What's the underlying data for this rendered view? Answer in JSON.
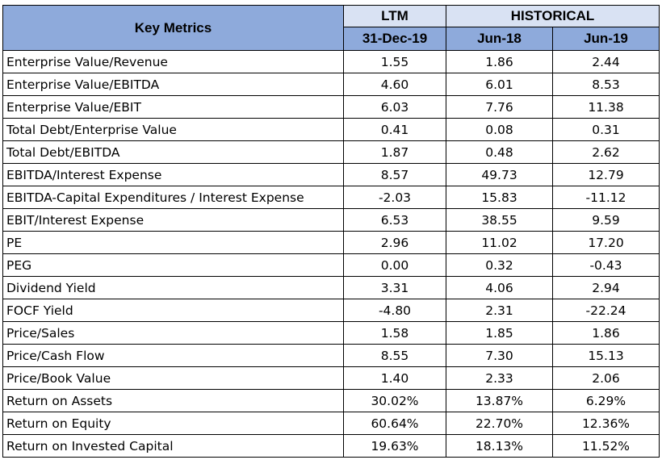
{
  "header": {
    "key_metrics": "Key Metrics",
    "ltm": "LTM",
    "historical": "HISTORICAL",
    "col_ltm_date": "31-Dec-19",
    "col_hist_1": "Jun-18",
    "col_hist_2": "Jun-19"
  },
  "rows": [
    {
      "name": "Enterprise Value/Revenue",
      "ltm": "1.55",
      "jun18": "1.86",
      "jun19": "2.44"
    },
    {
      "name": "Enterprise Value/EBITDA",
      "ltm": "4.60",
      "jun18": "6.01",
      "jun19": "8.53"
    },
    {
      "name": "Enterprise Value/EBIT",
      "ltm": "6.03",
      "jun18": "7.76",
      "jun19": "11.38"
    },
    {
      "name": "Total Debt/Enterprise Value",
      "ltm": "0.41",
      "jun18": "0.08",
      "jun19": "0.31"
    },
    {
      "name": "Total Debt/EBITDA",
      "ltm": "1.87",
      "jun18": "0.48",
      "jun19": "2.62"
    },
    {
      "name": "EBITDA/Interest Expense",
      "ltm": "8.57",
      "jun18": "49.73",
      "jun19": "12.79"
    },
    {
      "name": "EBITDA-Capital Expenditures / Interest Expense",
      "ltm": "-2.03",
      "jun18": "15.83",
      "jun19": "-11.12"
    },
    {
      "name": "EBIT/Interest Expense",
      "ltm": "6.53",
      "jun18": "38.55",
      "jun19": "9.59"
    },
    {
      "name": "PE",
      "ltm": "2.96",
      "jun18": "11.02",
      "jun19": "17.20"
    },
    {
      "name": "PEG",
      "ltm": "0.00",
      "jun18": "0.32",
      "jun19": "-0.43"
    },
    {
      "name": "Dividend Yield",
      "ltm": "3.31",
      "jun18": "4.06",
      "jun19": "2.94"
    },
    {
      "name": "FOCF Yield",
      "ltm": "-4.80",
      "jun18": "2.31",
      "jun19": "-22.24"
    },
    {
      "name": "Price/Sales",
      "ltm": "1.58",
      "jun18": "1.85",
      "jun19": "1.86"
    },
    {
      "name": "Price/Cash Flow",
      "ltm": "8.55",
      "jun18": "7.30",
      "jun19": "15.13"
    },
    {
      "name": "Price/Book Value",
      "ltm": "1.40",
      "jun18": "2.33",
      "jun19": "2.06"
    },
    {
      "name": "Return on Assets",
      "ltm": "30.02%",
      "jun18": "13.87%",
      "jun19": "6.29%"
    },
    {
      "name": "Return on Equity",
      "ltm": "60.64%",
      "jun18": "22.70%",
      "jun19": "12.36%"
    },
    {
      "name": "Return on Invested Capital",
      "ltm": "19.63%",
      "jun18": "18.13%",
      "jun19": "11.52%"
    }
  ],
  "colors": {
    "header_dark": "#8eaadb",
    "header_light": "#d9e2f3",
    "border": "#000000"
  }
}
